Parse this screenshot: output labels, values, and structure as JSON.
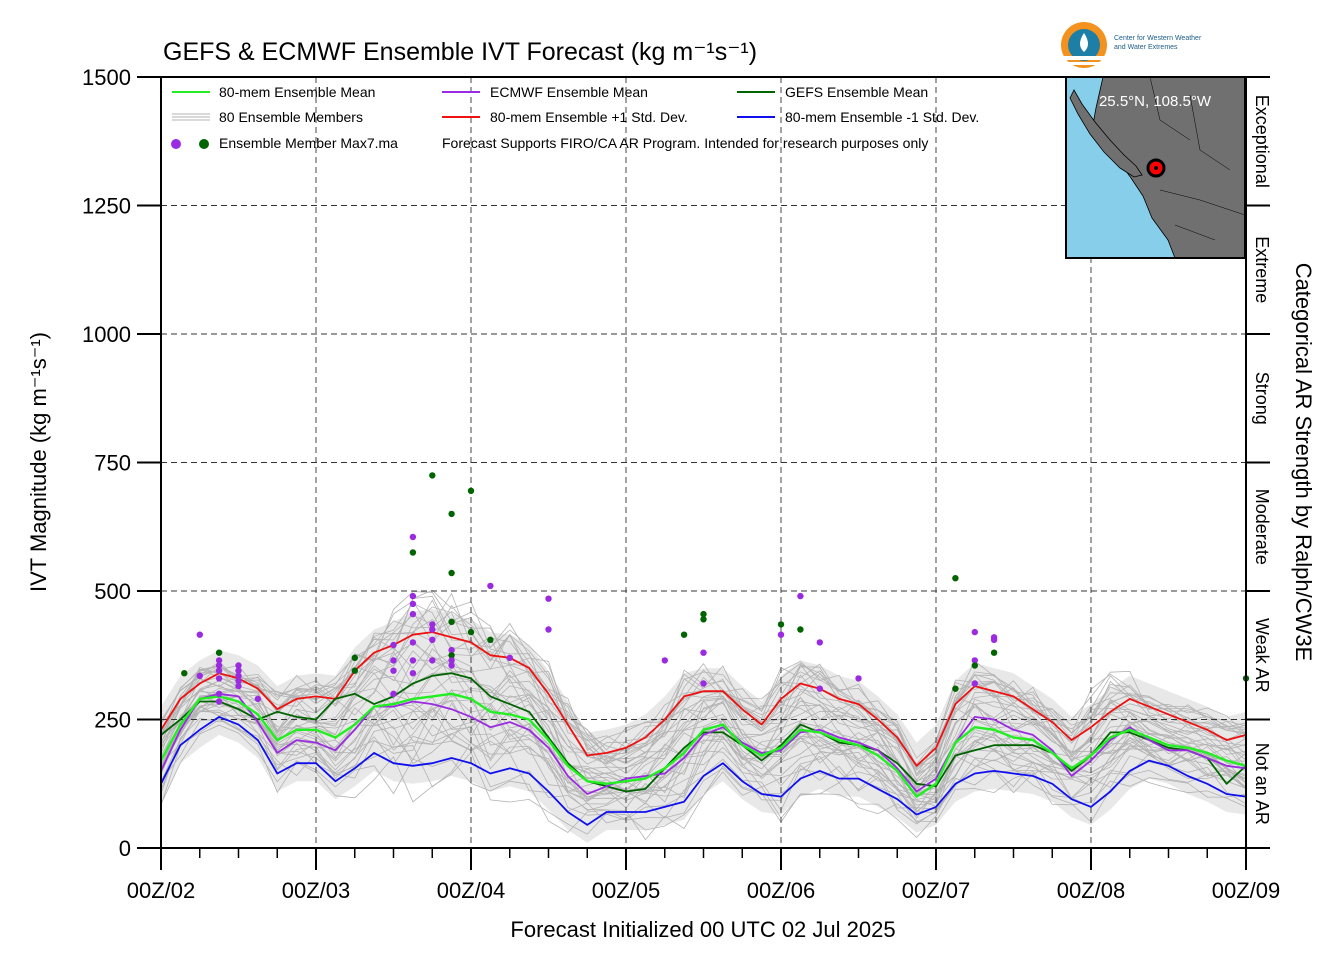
{
  "chart_data": {
    "type": "line",
    "title": "GEFS & ECMWF Ensemble IVT Forecast (kg m⁻¹s⁻¹)",
    "xlabel": "Forecast Initialized 00 UTC 02 Jul 2025",
    "ylabel": "IVT Magnitude (kg m⁻¹s⁻¹)",
    "right_axis_label": "Categorical AR Strength by Ralph/CW3E",
    "x_unit": "days after 00Z/02",
    "xlim": [
      0,
      7
    ],
    "ylim": [
      0,
      1500
    ],
    "grid": true,
    "legend_position": "top-left",
    "x_ticks": [
      {
        "x": 0,
        "label": "00Z/02"
      },
      {
        "x": 1,
        "label": "00Z/03"
      },
      {
        "x": 2,
        "label": "00Z/04"
      },
      {
        "x": 3,
        "label": "00Z/05"
      },
      {
        "x": 4,
        "label": "00Z/06"
      },
      {
        "x": 5,
        "label": "00Z/07"
      },
      {
        "x": 6,
        "label": "00Z/08"
      },
      {
        "x": 7,
        "label": "00Z/09"
      }
    ],
    "y_ticks": [
      0,
      250,
      500,
      750,
      1000,
      1250,
      1500
    ],
    "categories": [
      {
        "label": "Not an AR",
        "min": 0,
        "max": 250
      },
      {
        "label": "Weak AR",
        "min": 250,
        "max": 500
      },
      {
        "label": "Moderate",
        "min": 500,
        "max": 750
      },
      {
        "label": "Strong",
        "min": 750,
        "max": 1000
      },
      {
        "label": "Extreme",
        "min": 1000,
        "max": 1250
      },
      {
        "label": "Exceptional",
        "min": 1250,
        "max": 1500
      }
    ],
    "legend": {
      "ens_mean": "80-mem Ensemble Mean",
      "members": "80 Ensemble Members",
      "max_points": "Ensemble Member Max7.ma",
      "ecmwf_mean": "ECMWF Ensemble Mean",
      "plus_sd": "80-mem Ensemble +1 Std. Dev.",
      "gefs_mean": "GEFS Ensemble Mean",
      "minus_sd": "80-mem Ensemble -1 Std. Dev.",
      "disclaimer": "Forecast Supports FIRO/CA AR Program. Intended for research purposes only"
    },
    "inset_map_label": "25.5°N, 108.5°W",
    "logo_text": [
      "Center for Western Weather",
      "and Water Extremes"
    ],
    "colors": {
      "ens_mean": "#22ee22",
      "ecmwf_mean": "#9a2be0",
      "gefs_mean": "#006400",
      "plus_sd": "#ee1111",
      "minus_sd": "#1010ee",
      "members": "#b3b3b3",
      "envelope": "#d6d6d6",
      "ocean": "#87ceeb",
      "land": "#707070"
    },
    "x": [
      0,
      0.125,
      0.25,
      0.375,
      0.5,
      0.625,
      0.75,
      0.875,
      1,
      1.125,
      1.25,
      1.375,
      1.5,
      1.625,
      1.75,
      1.875,
      2,
      2.125,
      2.25,
      2.375,
      2.5,
      2.625,
      2.75,
      2.875,
      3,
      3.125,
      3.25,
      3.375,
      3.5,
      3.625,
      3.75,
      3.875,
      4,
      4.125,
      4.25,
      4.375,
      4.5,
      4.625,
      4.75,
      4.875,
      5,
      5.125,
      5.25,
      5.375,
      5.5,
      5.625,
      5.75,
      5.875,
      6,
      6.125,
      6.25,
      6.375,
      6.5,
      6.625,
      6.75,
      6.875,
      7
    ],
    "series": [
      {
        "name": "80-mem Ensemble Mean",
        "key": "ens_mean",
        "values": [
          170,
          240,
          290,
          295,
          285,
          260,
          210,
          230,
          230,
          215,
          240,
          275,
          280,
          290,
          295,
          300,
          290,
          265,
          260,
          250,
          210,
          160,
          130,
          125,
          130,
          135,
          155,
          185,
          230,
          240,
          200,
          180,
          195,
          230,
          225,
          210,
          200,
          180,
          150,
          100,
          125,
          205,
          235,
          230,
          215,
          210,
          185,
          155,
          180,
          215,
          230,
          215,
          200,
          195,
          185,
          170,
          160
        ]
      },
      {
        "name": "ECMWF Ensemble Mean",
        "key": "ecmwf_mean",
        "values": [
          150,
          230,
          290,
          300,
          295,
          245,
          185,
          210,
          205,
          190,
          230,
          275,
          275,
          285,
          280,
          270,
          255,
          235,
          245,
          230,
          195,
          140,
          105,
          120,
          135,
          140,
          145,
          175,
          220,
          235,
          205,
          185,
          190,
          225,
          230,
          215,
          205,
          190,
          155,
          110,
          135,
          205,
          255,
          250,
          230,
          220,
          190,
          140,
          170,
          210,
          235,
          210,
          190,
          190,
          175,
          160,
          155
        ]
      },
      {
        "name": "GEFS Ensemble Mean",
        "key": "gefs_mean",
        "values": [
          220,
          250,
          285,
          285,
          270,
          250,
          265,
          255,
          250,
          290,
          300,
          280,
          295,
          320,
          335,
          340,
          330,
          295,
          280,
          265,
          215,
          165,
          130,
          120,
          110,
          115,
          155,
          195,
          225,
          225,
          200,
          170,
          200,
          240,
          225,
          205,
          200,
          190,
          165,
          125,
          120,
          180,
          190,
          200,
          200,
          200,
          185,
          150,
          180,
          225,
          225,
          210,
          195,
          190,
          175,
          125,
          160
        ]
      },
      {
        "name": "80-mem Ensemble +1 Std. Dev.",
        "key": "plus_sd",
        "values": [
          230,
          290,
          320,
          340,
          330,
          310,
          270,
          290,
          295,
          290,
          345,
          380,
          395,
          415,
          420,
          410,
          400,
          375,
          370,
          350,
          300,
          240,
          180,
          185,
          195,
          215,
          250,
          295,
          305,
          305,
          270,
          240,
          290,
          320,
          310,
          290,
          280,
          250,
          215,
          160,
          195,
          280,
          315,
          305,
          295,
          270,
          245,
          210,
          235,
          265,
          290,
          275,
          260,
          245,
          230,
          210,
          220
        ]
      },
      {
        "name": "80-mem Ensemble -1 Std. Dev.",
        "key": "minus_sd",
        "values": [
          125,
          200,
          230,
          255,
          240,
          210,
          145,
          165,
          165,
          130,
          155,
          185,
          165,
          160,
          165,
          175,
          165,
          145,
          155,
          145,
          110,
          70,
          45,
          70,
          70,
          70,
          80,
          90,
          140,
          165,
          130,
          105,
          100,
          135,
          150,
          135,
          135,
          115,
          95,
          65,
          80,
          125,
          145,
          150,
          145,
          140,
          125,
          95,
          80,
          110,
          150,
          170,
          160,
          140,
          125,
          105,
          100
        ]
      }
    ],
    "max_points": [
      {
        "x": 0.15,
        "y": 340,
        "model": "GEFS"
      },
      {
        "x": 0.25,
        "y": 415,
        "model": "ECMWF"
      },
      {
        "x": 0.25,
        "y": 335,
        "model": "ECMWF"
      },
      {
        "x": 0.375,
        "y": 380,
        "model": "GEFS"
      },
      {
        "x": 0.375,
        "y": 365,
        "model": "ECMWF"
      },
      {
        "x": 0.375,
        "y": 355,
        "model": "ECMWF"
      },
      {
        "x": 0.375,
        "y": 345,
        "model": "ECMWF"
      },
      {
        "x": 0.375,
        "y": 330,
        "model": "ECMWF"
      },
      {
        "x": 0.375,
        "y": 300,
        "model": "ECMWF"
      },
      {
        "x": 0.375,
        "y": 285,
        "model": "ECMWF"
      },
      {
        "x": 0.5,
        "y": 355,
        "model": "ECMWF"
      },
      {
        "x": 0.5,
        "y": 345,
        "model": "ECMWF"
      },
      {
        "x": 0.5,
        "y": 335,
        "model": "ECMWF"
      },
      {
        "x": 0.5,
        "y": 325,
        "model": "ECMWF"
      },
      {
        "x": 0.5,
        "y": 315,
        "model": "ECMWF"
      },
      {
        "x": 0.625,
        "y": 290,
        "model": "ECMWF"
      },
      {
        "x": 1.25,
        "y": 370,
        "model": "GEFS"
      },
      {
        "x": 1.25,
        "y": 345,
        "model": "GEFS"
      },
      {
        "x": 1.5,
        "y": 395,
        "model": "ECMWF"
      },
      {
        "x": 1.5,
        "y": 365,
        "model": "ECMWF"
      },
      {
        "x": 1.5,
        "y": 345,
        "model": "ECMWF"
      },
      {
        "x": 1.5,
        "y": 300,
        "model": "ECMWF"
      },
      {
        "x": 1.625,
        "y": 605,
        "model": "ECMWF"
      },
      {
        "x": 1.625,
        "y": 575,
        "model": "GEFS"
      },
      {
        "x": 1.625,
        "y": 490,
        "model": "ECMWF"
      },
      {
        "x": 1.625,
        "y": 475,
        "model": "ECMWF"
      },
      {
        "x": 1.625,
        "y": 455,
        "model": "ECMWF"
      },
      {
        "x": 1.625,
        "y": 400,
        "model": "ECMWF"
      },
      {
        "x": 1.625,
        "y": 365,
        "model": "ECMWF"
      },
      {
        "x": 1.625,
        "y": 340,
        "model": "ECMWF"
      },
      {
        "x": 1.75,
        "y": 725,
        "model": "GEFS"
      },
      {
        "x": 1.75,
        "y": 435,
        "model": "ECMWF"
      },
      {
        "x": 1.75,
        "y": 425,
        "model": "ECMWF"
      },
      {
        "x": 1.75,
        "y": 405,
        "model": "ECMWF"
      },
      {
        "x": 1.75,
        "y": 365,
        "model": "ECMWF"
      },
      {
        "x": 1.875,
        "y": 650,
        "model": "GEFS"
      },
      {
        "x": 1.875,
        "y": 535,
        "model": "GEFS"
      },
      {
        "x": 1.875,
        "y": 440,
        "model": "GEFS"
      },
      {
        "x": 1.875,
        "y": 385,
        "model": "ECMWF"
      },
      {
        "x": 1.875,
        "y": 375,
        "model": "GEFS"
      },
      {
        "x": 1.875,
        "y": 365,
        "model": "ECMWF"
      },
      {
        "x": 1.875,
        "y": 355,
        "model": "ECMWF"
      },
      {
        "x": 2.0,
        "y": 695,
        "model": "GEFS"
      },
      {
        "x": 2.0,
        "y": 420,
        "model": "GEFS"
      },
      {
        "x": 2.125,
        "y": 510,
        "model": "ECMWF"
      },
      {
        "x": 2.125,
        "y": 405,
        "model": "GEFS"
      },
      {
        "x": 2.25,
        "y": 370,
        "model": "ECMWF"
      },
      {
        "x": 2.5,
        "y": 485,
        "model": "ECMWF"
      },
      {
        "x": 2.5,
        "y": 425,
        "model": "ECMWF"
      },
      {
        "x": 3.25,
        "y": 365,
        "model": "ECMWF"
      },
      {
        "x": 3.375,
        "y": 415,
        "model": "GEFS"
      },
      {
        "x": 3.5,
        "y": 455,
        "model": "GEFS"
      },
      {
        "x": 3.5,
        "y": 445,
        "model": "GEFS"
      },
      {
        "x": 3.5,
        "y": 380,
        "model": "ECMWF"
      },
      {
        "x": 3.5,
        "y": 320,
        "model": "ECMWF"
      },
      {
        "x": 4.0,
        "y": 435,
        "model": "GEFS"
      },
      {
        "x": 4.0,
        "y": 415,
        "model": "ECMWF"
      },
      {
        "x": 4.125,
        "y": 490,
        "model": "ECMWF"
      },
      {
        "x": 4.125,
        "y": 425,
        "model": "GEFS"
      },
      {
        "x": 4.25,
        "y": 400,
        "model": "ECMWF"
      },
      {
        "x": 4.25,
        "y": 310,
        "model": "ECMWF"
      },
      {
        "x": 4.5,
        "y": 330,
        "model": "ECMWF"
      },
      {
        "x": 5.125,
        "y": 525,
        "model": "GEFS"
      },
      {
        "x": 5.125,
        "y": 310,
        "model": "GEFS"
      },
      {
        "x": 5.25,
        "y": 420,
        "model": "ECMWF"
      },
      {
        "x": 5.25,
        "y": 365,
        "model": "ECMWF"
      },
      {
        "x": 5.25,
        "y": 355,
        "model": "GEFS"
      },
      {
        "x": 5.25,
        "y": 320,
        "model": "ECMWF"
      },
      {
        "x": 5.375,
        "y": 410,
        "model": "ECMWF"
      },
      {
        "x": 5.375,
        "y": 405,
        "model": "ECMWF"
      },
      {
        "x": 5.375,
        "y": 380,
        "model": "GEFS"
      },
      {
        "x": 7.0,
        "y": 330,
        "model": "GEFS"
      }
    ]
  }
}
